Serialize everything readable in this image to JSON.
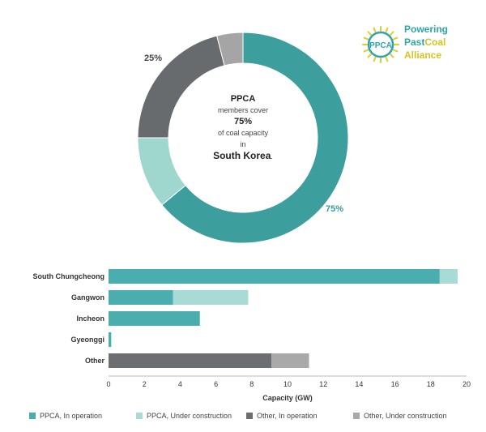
{
  "colors": {
    "ppca_operation": "#4baeae",
    "ppca_construction": "#a8dbd5",
    "other_operation": "#6b6f72",
    "other_construction": "#a9a9a9",
    "donut_ppca_op": "#3d9e9e",
    "donut_ppca_con": "#9fd6ce",
    "donut_other_op": "#676b6e",
    "donut_other_con": "#a5a5a5"
  },
  "logo": {
    "mark_text": "PPCA",
    "line1": "Powering",
    "line2a": "Past",
    "line2b": "Coal",
    "line3": "Alliance"
  },
  "donut": {
    "left_label": "25%",
    "right_label": "75%",
    "center": {
      "line1": "PPCA",
      "line2": "members cover",
      "line3": "75%",
      "line4": "of coal capacity",
      "line5": "in",
      "line6": "South Korea",
      "line6_suffix": "."
    }
  },
  "chart_data": [
    {
      "type": "pie",
      "hole": true,
      "slices": [
        {
          "label": "PPCA, In operation",
          "value": 64
        },
        {
          "label": "PPCA, Under construction",
          "value": 11
        },
        {
          "label": "Other, In operation",
          "value": 21
        },
        {
          "label": "Other, Under construction",
          "value": 4
        }
      ]
    },
    {
      "type": "bar",
      "orientation": "horizontal",
      "stacked": true,
      "categories": [
        "South Chungcheong",
        "Gangwon",
        "Incheon",
        "Gyeonggi",
        "Other"
      ],
      "series": [
        {
          "name": "PPCA, In operation",
          "values": [
            18.5,
            3.6,
            5.1,
            0.15,
            0
          ]
        },
        {
          "name": "PPCA, Under construction",
          "values": [
            1.0,
            4.2,
            0,
            0,
            0
          ]
        },
        {
          "name": "Other, In operation",
          "values": [
            0,
            0,
            0,
            0,
            9.1
          ]
        },
        {
          "name": "Other, Under construction",
          "values": [
            0,
            0,
            0,
            0,
            2.1
          ]
        }
      ],
      "xlabel": "Capacity (GW)",
      "xlim": [
        0,
        20
      ],
      "xticks": [
        "0",
        "2",
        "4",
        "6",
        "8",
        "10",
        "12",
        "14",
        "16",
        "18",
        "20"
      ],
      "legend_position": "bottom"
    }
  ]
}
